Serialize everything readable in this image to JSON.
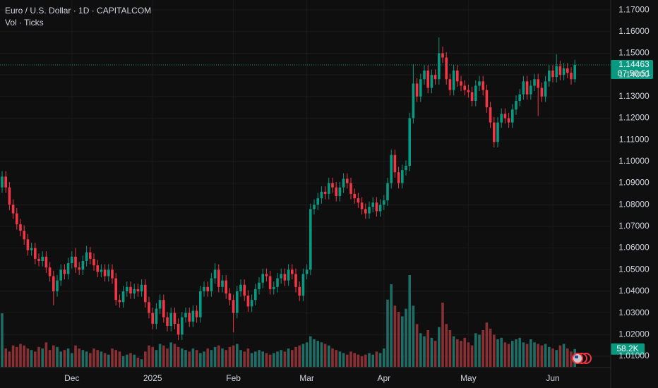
{
  "chart_data": {
    "type": "candlestick",
    "title": "Euro / U.S. Dollar · 1D · CAPITALCOM",
    "subtitle": "Vol · Ticks",
    "up_color": "#089981",
    "down_color": "#f23645",
    "volume_up_color": "#1f6e66",
    "volume_down_color": "#8a3034",
    "grid": true,
    "ylim": [
      1.0051,
      1.1746
    ],
    "yticks": [
      {
        "value": 1.17,
        "label": "1.17000"
      },
      {
        "value": 1.16,
        "label": "1.16000"
      },
      {
        "value": 1.15,
        "label": "1.15000"
      },
      {
        "value": 1.14,
        "label": "1.14000"
      },
      {
        "value": 1.13,
        "label": "1.13000"
      },
      {
        "value": 1.12,
        "label": "1.12000"
      },
      {
        "value": 1.11,
        "label": "1.11000"
      },
      {
        "value": 1.1,
        "label": "1.10000"
      },
      {
        "value": 1.09,
        "label": "1.09000"
      },
      {
        "value": 1.08,
        "label": "1.08000"
      },
      {
        "value": 1.07,
        "label": "1.07000"
      },
      {
        "value": 1.06,
        "label": "1.06000"
      },
      {
        "value": 1.05,
        "label": "1.05000"
      },
      {
        "value": 1.04,
        "label": "1.04000"
      },
      {
        "value": 1.03,
        "label": "1.03000"
      },
      {
        "value": 1.02,
        "label": "1.02000"
      },
      {
        "value": 1.01,
        "label": "1.01000"
      }
    ],
    "countdown": "07:50:51",
    "volume_label": "58.2K",
    "categories": [
      null,
      null,
      null,
      null,
      null,
      null,
      null,
      null,
      null,
      null,
      null,
      null,
      null,
      null,
      null,
      null,
      null,
      null,
      null,
      "Dec",
      null,
      null,
      null,
      null,
      null,
      null,
      null,
      null,
      null,
      null,
      null,
      null,
      null,
      null,
      null,
      null,
      null,
      null,
      null,
      null,
      null,
      "2025",
      null,
      null,
      null,
      null,
      null,
      null,
      null,
      null,
      null,
      null,
      null,
      null,
      null,
      null,
      null,
      null,
      null,
      null,
      null,
      null,
      null,
      "Feb",
      null,
      null,
      null,
      null,
      null,
      null,
      null,
      null,
      null,
      null,
      null,
      null,
      null,
      null,
      null,
      null,
      null,
      null,
      null,
      "Mar",
      null,
      null,
      null,
      null,
      null,
      null,
      null,
      null,
      null,
      null,
      null,
      null,
      null,
      null,
      null,
      null,
      null,
      null,
      null,
      null,
      "Apr",
      null,
      null,
      null,
      null,
      null,
      null,
      null,
      null,
      null,
      null,
      null,
      null,
      null,
      null,
      null,
      null,
      null,
      null,
      null,
      null,
      null,
      null,
      "May",
      null,
      null,
      null,
      null,
      null,
      null,
      null,
      null,
      null,
      null,
      null,
      null,
      null,
      null,
      null,
      null,
      null,
      null,
      null,
      null,
      null,
      null,
      "Jun",
      null,
      null,
      null,
      null,
      null,
      null
    ],
    "open": [
      1.088,
      1.093,
      1.088,
      1.08,
      1.076,
      1.071,
      1.068,
      1.064,
      1.059,
      1.06,
      1.055,
      1.054,
      1.056,
      1.051,
      1.047,
      1.04,
      1.045,
      1.05,
      1.048,
      1.053,
      1.056,
      1.051,
      1.05,
      1.054,
      1.058,
      1.055,
      1.052,
      1.049,
      1.05,
      1.047,
      1.05,
      1.046,
      1.036,
      1.035,
      1.04,
      1.042,
      1.039,
      1.041,
      1.04,
      1.043,
      1.035,
      1.03,
      1.025,
      1.032,
      1.036,
      1.028,
      1.024,
      1.03,
      1.025,
      1.02,
      1.028,
      1.03,
      1.026,
      1.031,
      1.028,
      1.04,
      1.042,
      1.04,
      1.046,
      1.05,
      1.042,
      1.045,
      1.039,
      1.036,
      1.03,
      1.04,
      1.043,
      1.038,
      1.033,
      1.036,
      1.041,
      1.044,
      1.048,
      1.047,
      1.041,
      1.042,
      1.046,
      1.048,
      1.045,
      1.05,
      1.048,
      1.042,
      1.038,
      1.048,
      1.05,
      1.078,
      1.08,
      1.083,
      1.086,
      1.085,
      1.09,
      1.088,
      1.084,
      1.088,
      1.092,
      1.09,
      1.085,
      1.083,
      1.081,
      1.078,
      1.076,
      1.079,
      1.081,
      1.077,
      1.08,
      1.082,
      1.09,
      1.103,
      1.095,
      1.09,
      1.096,
      1.098,
      1.12,
      1.136,
      1.13,
      1.138,
      1.142,
      1.134,
      1.14,
      1.138,
      1.15,
      1.148,
      1.138,
      1.133,
      1.142,
      1.137,
      1.135,
      1.133,
      1.132,
      1.128,
      1.135,
      1.137,
      1.133,
      1.125,
      1.118,
      1.109,
      1.118,
      1.122,
      1.12,
      1.118,
      1.124,
      1.128,
      1.131,
      1.137,
      1.131,
      1.135,
      1.138,
      1.134,
      1.13,
      1.137,
      1.142,
      1.139,
      1.144,
      1.14,
      1.143,
      1.141,
      1.138
    ],
    "high": [
      1.0955,
      1.0955,
      1.0905,
      1.0825,
      1.0785,
      1.0735,
      1.0705,
      1.0665,
      1.0625,
      1.0625,
      1.0575,
      1.0585,
      1.0585,
      1.0535,
      1.0495,
      1.0475,
      1.0525,
      1.0525,
      1.0555,
      1.0585,
      1.06,
      1.0535,
      1.0565,
      1.061,
      1.0605,
      1.0575,
      1.0545,
      1.0525,
      1.0525,
      1.0525,
      1.0525,
      1.0485,
      1.0385,
      1.0425,
      1.0445,
      1.0445,
      1.0435,
      1.0435,
      1.0455,
      1.0455,
      1.0375,
      1.0325,
      1.0345,
      1.0385,
      1.0385,
      1.0305,
      1.0325,
      1.0325,
      1.0275,
      1.0305,
      1.0325,
      1.0325,
      1.0335,
      1.0335,
      1.0425,
      1.0445,
      1.0445,
      1.0485,
      1.053,
      1.0525,
      1.0475,
      1.0475,
      1.0415,
      1.0385,
      1.0425,
      1.0455,
      1.0455,
      1.0405,
      1.0385,
      1.0435,
      1.0465,
      1.0505,
      1.0505,
      1.0495,
      1.0445,
      1.0485,
      1.0505,
      1.0505,
      1.0525,
      1.0525,
      1.0505,
      1.0445,
      1.0505,
      1.0525,
      1.0805,
      1.0825,
      1.0855,
      1.0885,
      1.0885,
      1.0925,
      1.0925,
      1.0905,
      1.0905,
      1.0945,
      1.0945,
      1.0925,
      1.0875,
      1.0855,
      1.0835,
      1.0805,
      1.0815,
      1.0835,
      1.0835,
      1.0825,
      1.0845,
      1.0925,
      1.1055,
      1.1055,
      1.0975,
      1.0985,
      1.1005,
      1.1225,
      1.145,
      1.1385,
      1.1405,
      1.1445,
      1.1445,
      1.1425,
      1.1425,
      1.1573,
      1.153,
      1.1505,
      1.1405,
      1.1445,
      1.1445,
      1.1395,
      1.1375,
      1.1355,
      1.1345,
      1.1375,
      1.1395,
      1.1395,
      1.1355,
      1.1275,
      1.1205,
      1.1205,
      1.1245,
      1.1245,
      1.1225,
      1.1265,
      1.1305,
      1.1335,
      1.1395,
      1.1395,
      1.1375,
      1.1405,
      1.1405,
      1.1365,
      1.1395,
      1.1445,
      1.1445,
      1.1495,
      1.1465,
      1.1455,
      1.1455,
      1.1435,
      1.147
    ],
    "low": [
      1.0855,
      1.0855,
      1.0775,
      1.0735,
      1.0685,
      1.0655,
      1.0615,
      1.0565,
      1.0565,
      1.0525,
      1.0515,
      1.0515,
      1.0485,
      1.0445,
      1.0335,
      1.0375,
      1.0425,
      1.0455,
      1.0455,
      1.0505,
      1.0485,
      1.0475,
      1.0475,
      1.0515,
      1.0525,
      1.0495,
      1.0465,
      1.0465,
      1.0445,
      1.0445,
      1.0435,
      1.0335,
      1.0325,
      1.0325,
      1.0375,
      1.0365,
      1.0365,
      1.0375,
      1.0375,
      1.0325,
      1.0275,
      1.0225,
      1.0225,
      1.0295,
      1.0255,
      1.0215,
      1.0215,
      1.0225,
      1.0175,
      1.0175,
      1.0255,
      1.0235,
      1.0235,
      1.0255,
      1.0255,
      1.0375,
      1.0375,
      1.0375,
      1.0435,
      1.0395,
      1.0395,
      1.0365,
      1.0335,
      1.021,
      1.0275,
      1.0375,
      1.0355,
      1.0305,
      1.0305,
      1.0335,
      1.0385,
      1.0415,
      1.0445,
      1.0385,
      1.0385,
      1.0395,
      1.0435,
      1.0425,
      1.0425,
      1.0455,
      1.0395,
      1.0355,
      1.0355,
      1.0455,
      1.0475,
      1.0755,
      1.0775,
      1.0805,
      1.0825,
      1.0825,
      1.0855,
      1.0815,
      1.0815,
      1.0855,
      1.0875,
      1.0825,
      1.0805,
      1.0785,
      1.0755,
      1.0735,
      1.0735,
      1.0765,
      1.0745,
      1.0745,
      1.0775,
      1.0795,
      1.0875,
      1.0925,
      1.0875,
      1.0875,
      1.0935,
      1.0955,
      1.1175,
      1.1275,
      1.1275,
      1.1355,
      1.1315,
      1.1315,
      1.1355,
      1.1355,
      1.1455,
      1.1355,
      1.1305,
      1.1305,
      1.1345,
      1.1325,
      1.1305,
      1.1295,
      1.1255,
      1.1255,
      1.1325,
      1.1305,
      1.1225,
      1.1155,
      1.1065,
      1.1065,
      1.1155,
      1.1175,
      1.1155,
      1.1155,
      1.1215,
      1.1255,
      1.1285,
      1.1285,
      1.1285,
      1.1325,
      1.121,
      1.1275,
      1.1275,
      1.1345,
      1.1365,
      1.1365,
      1.1375,
      1.1375,
      1.1385,
      1.1355,
      1.1365
    ],
    "close": [
      1.093,
      1.088,
      1.08,
      1.076,
      1.071,
      1.068,
      1.064,
      1.059,
      1.06,
      1.055,
      1.054,
      1.056,
      1.051,
      1.047,
      1.04,
      1.045,
      1.05,
      1.048,
      1.053,
      1.056,
      1.051,
      1.05,
      1.054,
      1.058,
      1.055,
      1.052,
      1.049,
      1.05,
      1.047,
      1.05,
      1.046,
      1.036,
      1.035,
      1.04,
      1.042,
      1.039,
      1.041,
      1.04,
      1.043,
      1.035,
      1.03,
      1.025,
      1.032,
      1.036,
      1.028,
      1.024,
      1.03,
      1.025,
      1.02,
      1.028,
      1.03,
      1.026,
      1.031,
      1.028,
      1.04,
      1.042,
      1.04,
      1.046,
      1.05,
      1.042,
      1.045,
      1.039,
      1.036,
      1.03,
      1.04,
      1.043,
      1.038,
      1.033,
      1.036,
      1.041,
      1.044,
      1.048,
      1.047,
      1.041,
      1.042,
      1.046,
      1.048,
      1.045,
      1.05,
      1.048,
      1.042,
      1.038,
      1.048,
      1.05,
      1.078,
      1.08,
      1.083,
      1.086,
      1.085,
      1.09,
      1.088,
      1.084,
      1.088,
      1.092,
      1.09,
      1.085,
      1.083,
      1.081,
      1.078,
      1.076,
      1.079,
      1.081,
      1.077,
      1.08,
      1.082,
      1.09,
      1.103,
      1.095,
      1.09,
      1.096,
      1.098,
      1.12,
      1.136,
      1.13,
      1.138,
      1.142,
      1.134,
      1.14,
      1.138,
      1.15,
      1.148,
      1.138,
      1.133,
      1.142,
      1.137,
      1.135,
      1.133,
      1.132,
      1.128,
      1.135,
      1.137,
      1.133,
      1.125,
      1.118,
      1.109,
      1.118,
      1.122,
      1.12,
      1.118,
      1.124,
      1.128,
      1.131,
      1.137,
      1.131,
      1.135,
      1.138,
      1.134,
      1.13,
      1.137,
      1.142,
      1.139,
      1.144,
      1.14,
      1.143,
      1.141,
      1.138,
      1.14463
    ],
    "volume": [
      175000,
      60000,
      50000,
      70000,
      65000,
      75000,
      70000,
      60000,
      55000,
      50000,
      65000,
      60000,
      80000,
      55000,
      70000,
      65000,
      50000,
      55000,
      60000,
      45000,
      70000,
      60000,
      55000,
      50000,
      45000,
      60000,
      55000,
      50000,
      45000,
      40000,
      60000,
      55000,
      50000,
      35000,
      40000,
      45000,
      40000,
      30000,
      25000,
      50000,
      70000,
      65000,
      55000,
      75000,
      70000,
      60000,
      80000,
      75000,
      65000,
      60000,
      55000,
      50000,
      60000,
      55000,
      45000,
      50000,
      60000,
      55000,
      65000,
      70000,
      60000,
      55000,
      65000,
      70000,
      75000,
      55000,
      50000,
      60000,
      45000,
      50000,
      55000,
      50000,
      45000,
      40000,
      45000,
      50000,
      55000,
      50000,
      60000,
      55000,
      65000,
      70000,
      75000,
      80000,
      100000,
      90000,
      85000,
      80000,
      75000,
      70000,
      60000,
      55000,
      50000,
      45000,
      40000,
      50000,
      45000,
      40000,
      35000,
      40000,
      45000,
      40000,
      50000,
      45000,
      60000,
      220000,
      270000,
      200000,
      180000,
      165000,
      190000,
      300000,
      200000,
      140000,
      110000,
      100000,
      120000,
      95000,
      85000,
      130000,
      210000,
      140000,
      120000,
      100000,
      90000,
      85000,
      95000,
      80000,
      70000,
      110000,
      105000,
      120000,
      145000,
      125000,
      105000,
      90000,
      95000,
      80000,
      75000,
      85000,
      90000,
      95000,
      80000,
      75000,
      90000,
      80000,
      75000,
      70000,
      75000,
      65000,
      60000,
      55000,
      70000,
      75000,
      60000,
      50000,
      58200
    ]
  }
}
